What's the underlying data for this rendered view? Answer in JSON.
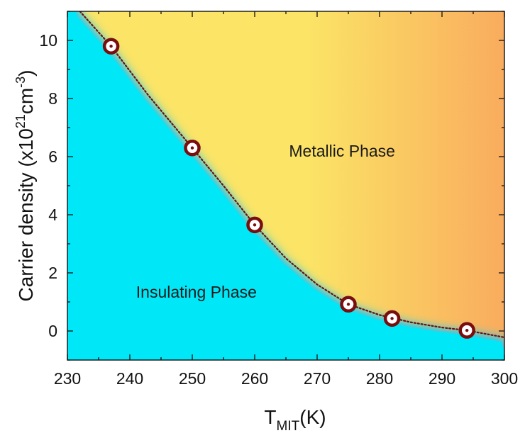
{
  "chart_data": {
    "type": "scatter",
    "xlabel": {
      "main": "T",
      "sub": "MIT",
      "unit": "(K)"
    },
    "ylabel": "Carrier density (x10^21 cm^-3)",
    "ylabel_parts": {
      "pre": "Carrier density (x10",
      "exp1": "21",
      "mid": "cm",
      "exp2": "-3",
      "post": ")"
    },
    "xlim": [
      230,
      300
    ],
    "ylim": [
      -1,
      11
    ],
    "xticks": [
      230,
      240,
      250,
      260,
      270,
      280,
      290,
      300
    ],
    "yticks": [
      0,
      2,
      4,
      6,
      8,
      10
    ],
    "annotations": [
      {
        "text": "Metallic Phase",
        "x": 265.5,
        "y": 6.0
      },
      {
        "text": "Insulating Phase",
        "x": 241.0,
        "y": 1.15
      }
    ],
    "series": [
      {
        "marker": "ring",
        "x": [
          237,
          250,
          260,
          275,
          282,
          294
        ],
        "y": [
          9.8,
          6.3,
          3.65,
          0.92,
          0.43,
          0.02
        ]
      }
    ],
    "fit_curve": {
      "style": "dotted",
      "x": [
        232,
        237,
        243,
        250,
        255,
        260,
        265,
        270,
        275,
        280,
        285,
        290,
        294,
        300
      ],
      "y": [
        11.0,
        9.8,
        8.1,
        6.3,
        5.0,
        3.65,
        2.5,
        1.6,
        0.92,
        0.55,
        0.3,
        0.12,
        0.02,
        -0.22
      ]
    },
    "colors": {
      "insulating": "#00e8f8",
      "insulating_edge": "#30c8e6",
      "metallic_near": "#fbe466",
      "metallic_far": "#f9ac5e",
      "boundary_line": "#6b0f0f",
      "marker": "#7a0d0d"
    }
  }
}
